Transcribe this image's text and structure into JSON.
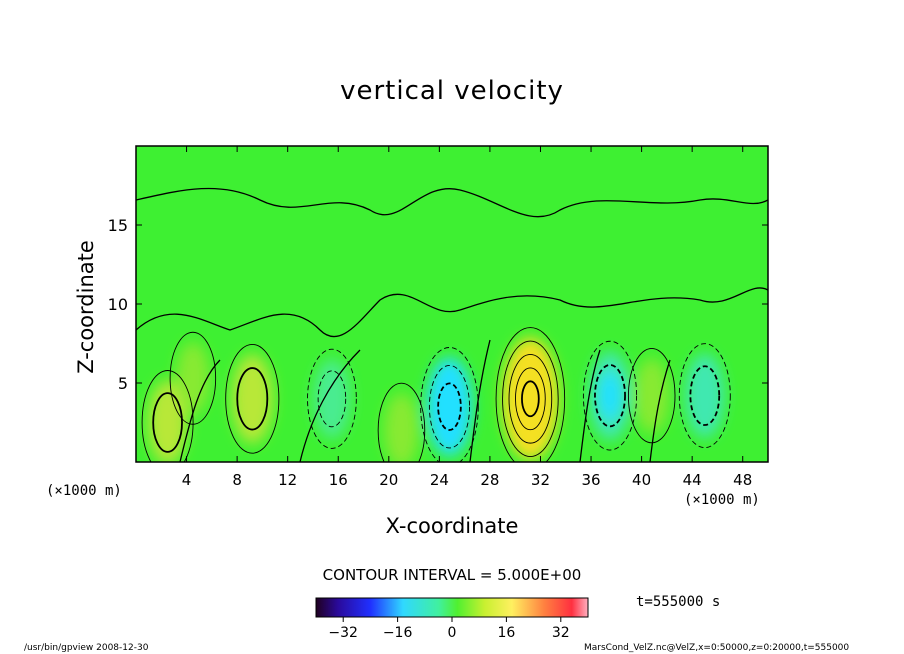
{
  "chart_data": {
    "type": "heatmap",
    "title": "vertical velocity",
    "xlabel": "X-coordinate",
    "ylabel": "Z-coordinate",
    "x_unit_label": "(×1000 m)",
    "x_ticks": [
      4,
      8,
      12,
      16,
      20,
      24,
      28,
      32,
      36,
      40,
      44,
      48
    ],
    "y_ticks": [
      5,
      10,
      15
    ],
    "xlim": [
      0,
      50
    ],
    "ylim": [
      0,
      20
    ],
    "contour_interval_text": "CONTOUR INTERVAL = 5.000E+00",
    "time_label": "t=555000 s",
    "colorbar": {
      "range": [
        -40,
        40
      ],
      "ticks": [
        -32,
        -16,
        0,
        16,
        32
      ]
    },
    "features": [
      {
        "x": 2.5,
        "z": 2.5,
        "value": 10,
        "sign": "positive"
      },
      {
        "x": 4.5,
        "z": 5.3,
        "value": 5,
        "sign": "positive"
      },
      {
        "x": 9.2,
        "z": 4.0,
        "value": 12,
        "sign": "positive"
      },
      {
        "x": 15.5,
        "z": 4.0,
        "value": -8,
        "sign": "negative"
      },
      {
        "x": 21.0,
        "z": 2.0,
        "value": 6,
        "sign": "positive"
      },
      {
        "x": 24.8,
        "z": 3.5,
        "value": -16,
        "sign": "negative"
      },
      {
        "x": 31.2,
        "z": 4.0,
        "value": 26,
        "sign": "positive"
      },
      {
        "x": 37.5,
        "z": 4.2,
        "value": -12,
        "sign": "negative"
      },
      {
        "x": 40.8,
        "z": 4.2,
        "value": 6,
        "sign": "positive"
      },
      {
        "x": 45.0,
        "z": 4.2,
        "value": -10,
        "sign": "negative"
      }
    ]
  },
  "footer": {
    "left": "/usr/bin/gpview   2008-12-30",
    "right": "MarsCond_VelZ.nc@VelZ,x=0:50000,z=0:20000,t=555000"
  }
}
